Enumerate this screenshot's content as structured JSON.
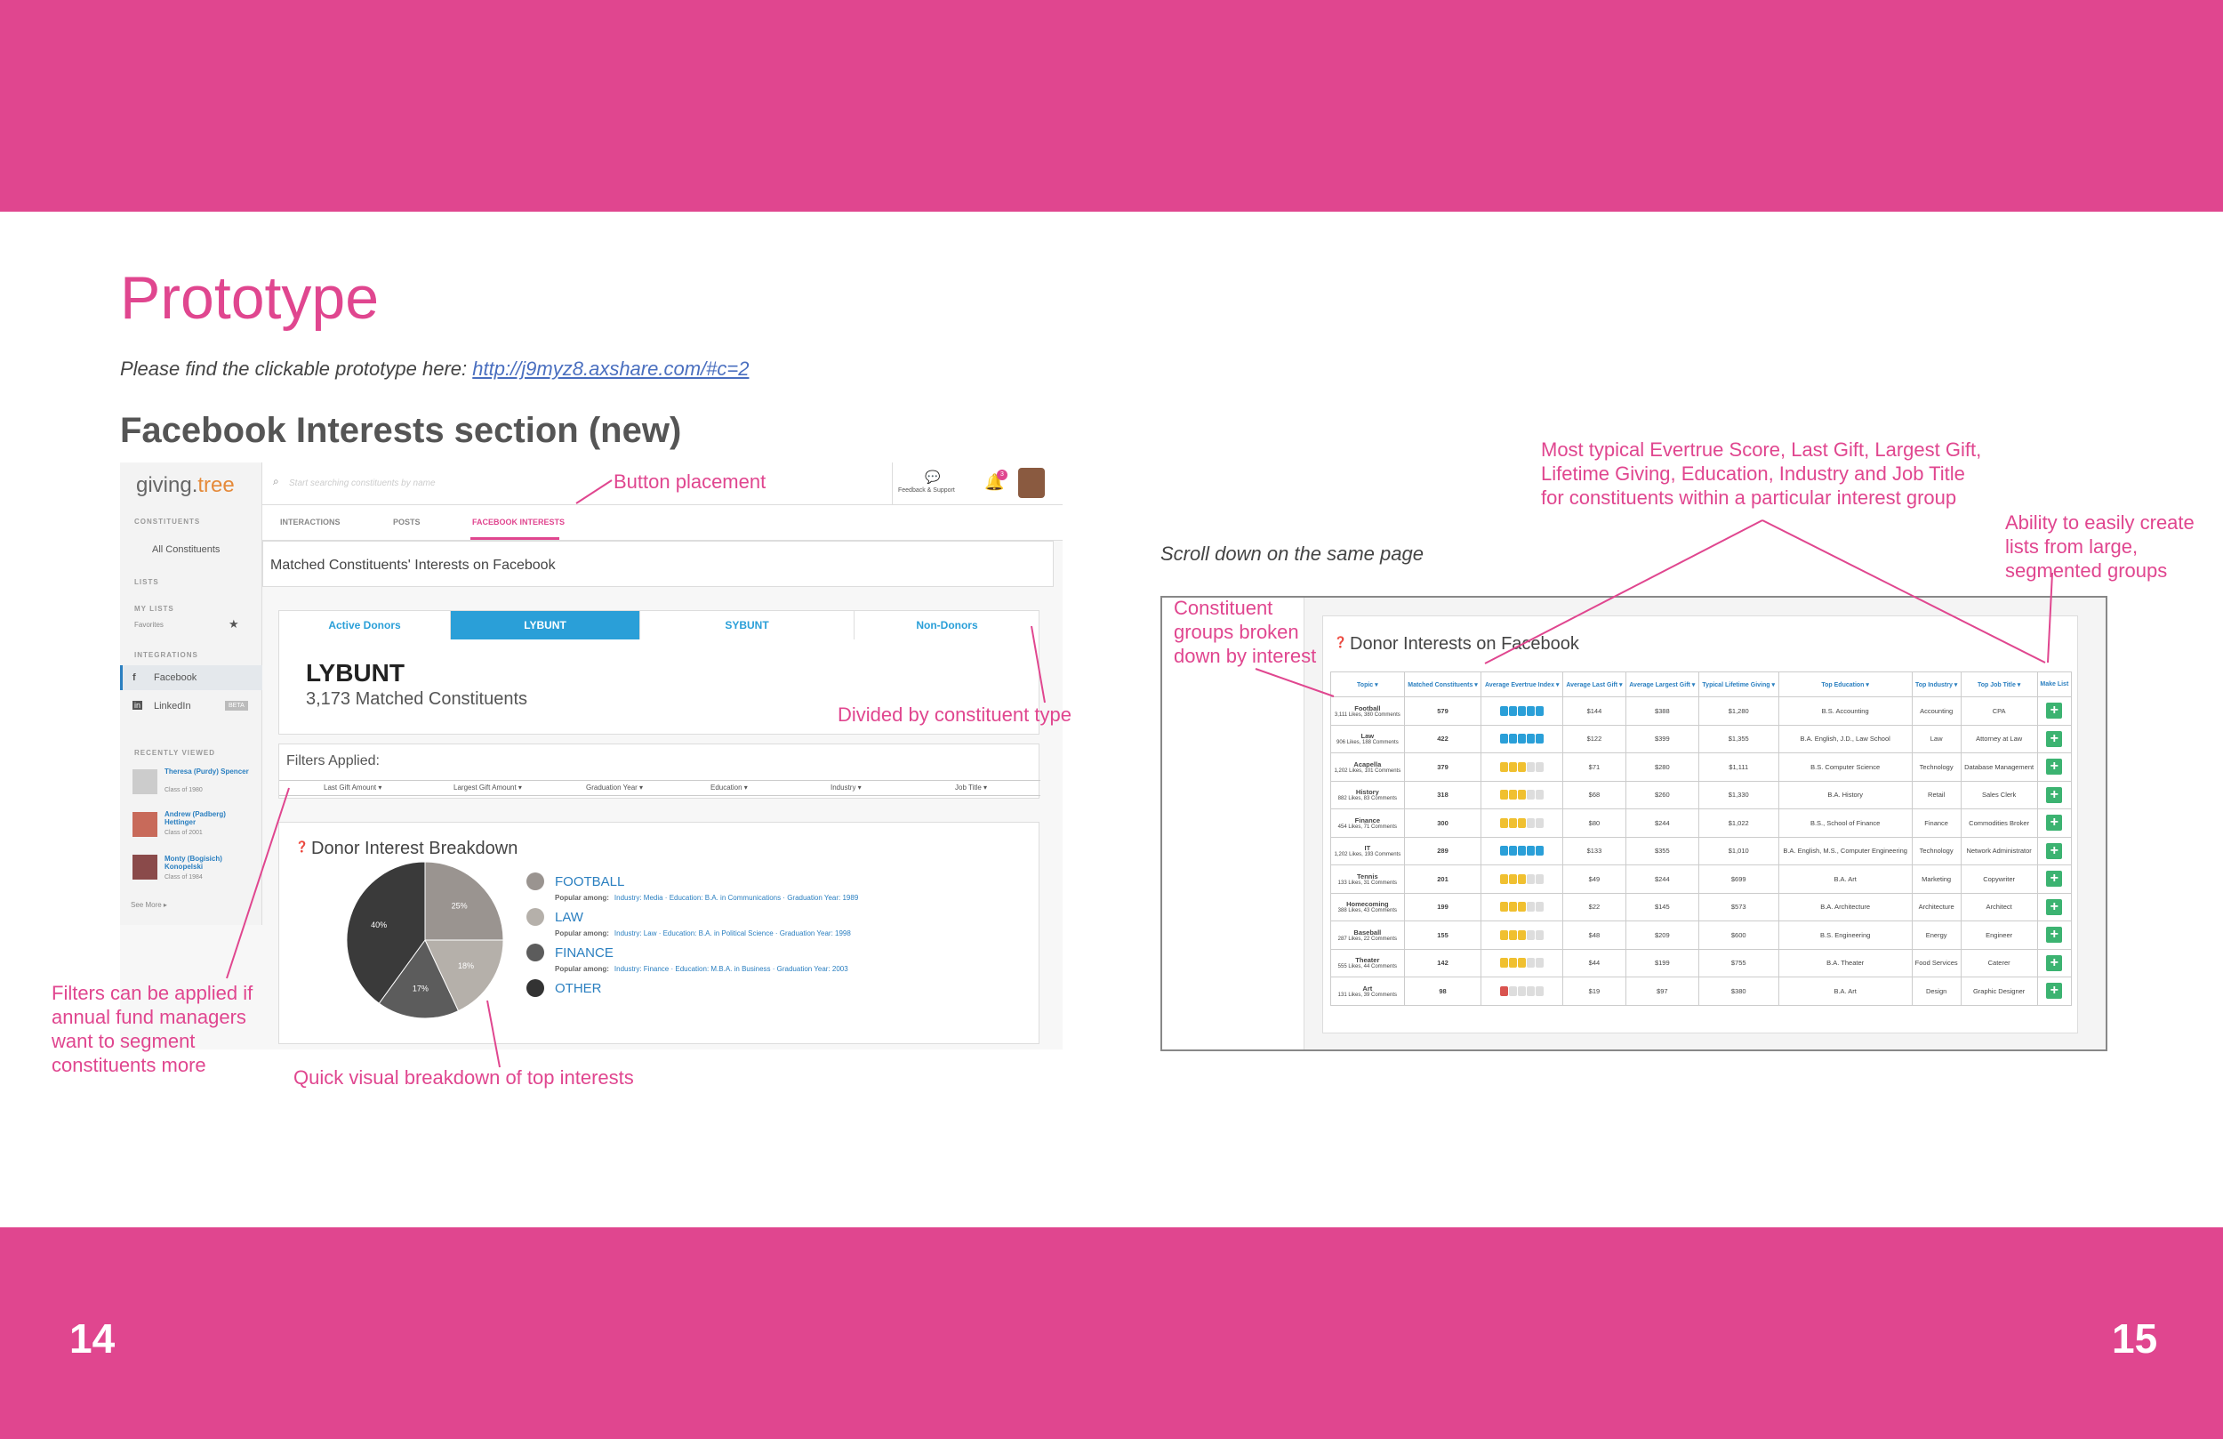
{
  "page_numbers": {
    "left": "14",
    "right": "15"
  },
  "heading": {
    "title": "Prototype",
    "intro_text": "Please find the clickable prototype here: ",
    "intro_link": "http://j9myz8.axshare.com/#c=2",
    "section_title": "Facebook Interests section (new)"
  },
  "annotations": {
    "button_placement": "Button placement",
    "divided": "Divided by constituent type",
    "filters": [
      "Filters can be applied if",
      "annual fund managers",
      "want to segment",
      "constituents more"
    ],
    "quick_visual": "Quick visual breakdown of top interests",
    "most_typical": [
      "Most typical Evertrue Score, Last Gift, Largest Gift,",
      "Lifetime Giving, Education, Industry and Job Title",
      "for constituents within a particular interest group"
    ],
    "ability": [
      "Ability to easily create",
      "lists from large,",
      "segmented groups"
    ],
    "constituent_groups": [
      "Constituent",
      "groups broken",
      "down by interest"
    ],
    "scroll_note": "Scroll down on the same page"
  },
  "app": {
    "logo_a": "giving.",
    "logo_b": "tree",
    "search_placeholder": "Start searching constituents by name",
    "feedback": "Feedback & Support",
    "notif_count": "3",
    "side": {
      "constituents_h": "CONSTITUENTS",
      "all_constituents": "All Constituents",
      "lists_h": "LISTS",
      "my_lists": "MY LISTS",
      "favorites": "Favorites",
      "integrations_h": "INTEGRATIONS",
      "facebook": "Facebook",
      "linkedin": "LinkedIn",
      "beta": "BETA",
      "recent_h": "RECENTLY VIEWED",
      "recent": [
        {
          "name": "Theresa (Purdy) Spencer",
          "class": "Class of 1980"
        },
        {
          "name": "Andrew (Padberg) Hettinger",
          "class": "Class of 2001"
        },
        {
          "name": "Monty (Bogisich) Konopelski",
          "class": "Class of 1984"
        }
      ],
      "see_more": "See More ▸"
    },
    "tabs": [
      "INTERACTIONS",
      "POSTS",
      "FACEBOOK INTERESTS"
    ],
    "matched_title": "Matched Constituents' Interests on Facebook",
    "ctabs": [
      "Active Donors",
      "LYBUNT",
      "SYBUNT",
      "Non-Donors"
    ],
    "lybunt_title": "LYBUNT",
    "lybunt_sub": "3,173 Matched Constituents",
    "filters_applied": "Filters Applied:",
    "filter_cols": [
      "Last Gift Amount ▾",
      "Largest Gift Amount ▾",
      "Graduation Year ▾",
      "Education ▾",
      "Industry ▾",
      "Job Title ▾"
    ],
    "breakdown_title": "Donor Interest Breakdown",
    "legend": [
      {
        "label": "FOOTBALL",
        "color": "#9a9490",
        "pop": "Industry: Media · Education: B.A. in Communications · Graduation Year: 1989"
      },
      {
        "label": "LAW",
        "color": "#b5b0aa",
        "pop": "Industry: Law · Education: B.A. in Political Science · Graduation Year: 1998"
      },
      {
        "label": "FINANCE",
        "color": "#5c5c5c",
        "pop": "Industry: Finance · Education: M.B.A. in Business · Graduation Year: 2003"
      },
      {
        "label": "OTHER",
        "color": "#333333",
        "pop": ""
      }
    ],
    "popular_among": "Popular among:",
    "pie": [
      {
        "label": "25%",
        "value": 25,
        "color": "#9a9490"
      },
      {
        "label": "18%",
        "value": 18,
        "color": "#b5b0aa"
      },
      {
        "label": "17%",
        "value": 17,
        "color": "#5c5c5c"
      },
      {
        "label": "40%",
        "value": 40,
        "color": "#3a3a3a"
      }
    ]
  },
  "table": {
    "title": "Donor Interests on Facebook",
    "headers": [
      "Topic ▾",
      "Matched Constituents ▾",
      "Average Evertrue Index ▾",
      "Average Last Gift ▾",
      "Average Largest Gift ▾",
      "Typical Lifetime Giving ▾",
      "Top Education ▾",
      "Top Industry ▾",
      "Top Job Title ▾",
      "Make List"
    ],
    "rows": [
      {
        "topic": "Football",
        "sub": "3,111 Likes, 380 Comments",
        "matched": "579",
        "score": 5,
        "color": "#2a9fd8",
        "last": "$144",
        "largest": "$388",
        "life": "$1,280",
        "edu": "B.S. Accounting",
        "ind": "Accounting",
        "job": "CPA"
      },
      {
        "topic": "Law",
        "sub": "906 Likes, 188 Comments",
        "matched": "422",
        "score": 5,
        "color": "#2a9fd8",
        "last": "$122",
        "largest": "$399",
        "life": "$1,355",
        "edu": "B.A. English, J.D., Law School",
        "ind": "Law",
        "job": "Attorney at Law"
      },
      {
        "topic": "Acapella",
        "sub": "1,202 Likes, 101 Comments",
        "matched": "379",
        "score": 3,
        "color": "#f0c030",
        "last": "$71",
        "largest": "$280",
        "life": "$1,111",
        "edu": "B.S. Computer Science",
        "ind": "Technology",
        "job": "Database Management"
      },
      {
        "topic": "History",
        "sub": "882 Likes, 83 Comments",
        "matched": "318",
        "score": 3,
        "color": "#f0c030",
        "last": "$68",
        "largest": "$260",
        "life": "$1,330",
        "edu": "B.A. History",
        "ind": "Retail",
        "job": "Sales Clerk"
      },
      {
        "topic": "Finance",
        "sub": "454 Likes, 71 Comments",
        "matched": "300",
        "score": 3,
        "color": "#f0c030",
        "last": "$80",
        "largest": "$244",
        "life": "$1,022",
        "edu": "B.S., School of Finance",
        "ind": "Finance",
        "job": "Commodities Broker"
      },
      {
        "topic": "IT",
        "sub": "1,202 Likes, 193 Comments",
        "matched": "289",
        "score": 5,
        "color": "#2a9fd8",
        "last": "$133",
        "largest": "$355",
        "life": "$1,010",
        "edu": "B.A. English, M.S., Computer Engineering",
        "ind": "Technology",
        "job": "Network Administrator"
      },
      {
        "topic": "Tennis",
        "sub": "133 Likes, 31 Comments",
        "matched": "201",
        "score": 3,
        "color": "#f0c030",
        "last": "$49",
        "largest": "$244",
        "life": "$699",
        "edu": "B.A. Art",
        "ind": "Marketing",
        "job": "Copywriter"
      },
      {
        "topic": "Homecoming",
        "sub": "388 Likes, 43 Comments",
        "matched": "199",
        "score": 3,
        "color": "#f0c030",
        "last": "$22",
        "largest": "$145",
        "life": "$573",
        "edu": "B.A. Architecture",
        "ind": "Architecture",
        "job": "Architect"
      },
      {
        "topic": "Baseball",
        "sub": "287 Likes, 22 Comments",
        "matched": "155",
        "score": 3,
        "color": "#f0c030",
        "last": "$48",
        "largest": "$209",
        "life": "$600",
        "edu": "B.S. Engineering",
        "ind": "Energy",
        "job": "Engineer"
      },
      {
        "topic": "Theater",
        "sub": "555 Likes, 44 Comments",
        "matched": "142",
        "score": 3,
        "color": "#f0c030",
        "last": "$44",
        "largest": "$199",
        "life": "$755",
        "edu": "B.A. Theater",
        "ind": "Food Services",
        "job": "Caterer"
      },
      {
        "topic": "Art",
        "sub": "131 Likes, 39 Comments",
        "matched": "98",
        "score": 1,
        "color": "#d9534f",
        "last": "$19",
        "largest": "$97",
        "life": "$380",
        "edu": "B.A. Art",
        "ind": "Design",
        "job": "Graphic Designer"
      }
    ]
  }
}
